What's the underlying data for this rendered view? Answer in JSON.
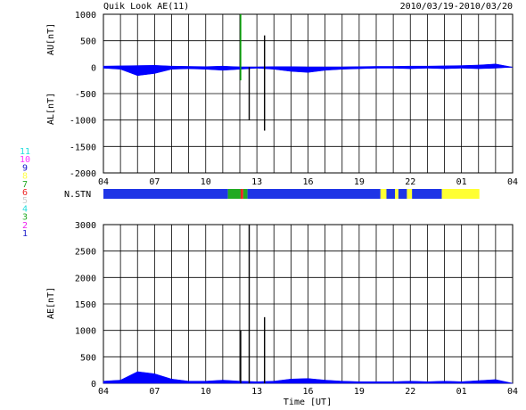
{
  "header": {
    "title": "Quik Look AE(11)",
    "date_range": "2010/03/19-2010/03/20"
  },
  "colors": {
    "background": "#ffffff",
    "grid": "#000000",
    "au_fill": "#0000ff",
    "au_high": "#00aa00",
    "al_fill": "#0000ff",
    "spike": "#000000",
    "yellow_series": "#ffff00",
    "stn_blue": "#1f35e6",
    "stn_yellow": "#ffff33"
  },
  "station_legend": [
    {
      "label": "11",
      "color": "#22dddd"
    },
    {
      "label": "10",
      "color": "#ff33ff"
    },
    {
      "label": "9",
      "color": "#1111cc"
    },
    {
      "label": "8",
      "color": "#ffff44"
    },
    {
      "label": "7",
      "color": "#22aa22"
    },
    {
      "label": "6",
      "color": "#ee2222"
    },
    {
      "label": "5",
      "color": "#cccccc"
    },
    {
      "label": "4",
      "color": "#22dddd"
    },
    {
      "label": "3",
      "color": "#22aa22"
    },
    {
      "label": "2",
      "color": "#ee22ee"
    },
    {
      "label": "1",
      "color": "#2222cc"
    }
  ],
  "chart_data": [
    {
      "id": "au_al",
      "type": "area",
      "ylabel_upper": "AU[nT]",
      "ylabel_lower": "AL[nT]",
      "ylim": [
        -2000,
        1000
      ],
      "yticks": [
        1000,
        500,
        0,
        -500,
        -1000,
        -1500,
        -2000
      ],
      "xticks": [
        "04",
        "07",
        "10",
        "13",
        "16",
        "19",
        "22",
        "01",
        "04"
      ],
      "x_hours": [
        0,
        1,
        2,
        3,
        4,
        5,
        6,
        7,
        8,
        9,
        10,
        11,
        12,
        13,
        14,
        15,
        16,
        17,
        18,
        19,
        20,
        21,
        22,
        23,
        24
      ],
      "au": [
        20,
        25,
        30,
        35,
        20,
        15,
        10,
        20,
        5,
        5,
        10,
        10,
        5,
        5,
        5,
        10,
        15,
        15,
        20,
        20,
        25,
        30,
        40,
        60,
        0
      ],
      "al": [
        -20,
        -40,
        -160,
        -120,
        -40,
        -30,
        -40,
        -60,
        -40,
        -20,
        -40,
        -80,
        -100,
        -60,
        -40,
        -30,
        -20,
        -20,
        -30,
        -20,
        -30,
        -20,
        -30,
        -20,
        0
      ],
      "spikes_hours": [
        8.05,
        8.55,
        9.45
      ],
      "spike_values": [
        [
          -250,
          1000
        ],
        [
          -1000,
          0
        ],
        [
          -1200,
          600
        ]
      ],
      "grid": true
    },
    {
      "id": "nstn",
      "type": "heatmap",
      "label": "N.STN",
      "segments": [
        {
          "from": 0,
          "to": 7.3,
          "color": "#1f35e6"
        },
        {
          "from": 7.3,
          "to": 8.05,
          "color": "#22aa22"
        },
        {
          "from": 8.05,
          "to": 8.2,
          "color": "#ee2222"
        },
        {
          "from": 8.2,
          "to": 8.45,
          "color": "#22aa22"
        },
        {
          "from": 8.45,
          "to": 16.25,
          "color": "#1f35e6"
        },
        {
          "from": 16.25,
          "to": 16.6,
          "color": "#ffff33"
        },
        {
          "from": 16.6,
          "to": 17.1,
          "color": "#1f35e6"
        },
        {
          "from": 17.1,
          "to": 17.3,
          "color": "#ffff33"
        },
        {
          "from": 17.3,
          "to": 17.8,
          "color": "#1f35e6"
        },
        {
          "from": 17.8,
          "to": 18.1,
          "color": "#ffff33"
        },
        {
          "from": 18.1,
          "to": 19.85,
          "color": "#1f35e6"
        },
        {
          "from": 19.85,
          "to": 22.05,
          "color": "#ffff33"
        }
      ]
    },
    {
      "id": "ae",
      "type": "area",
      "ylabel": "AE[nT]",
      "xlabel": "Time [UT]",
      "ylim": [
        0,
        3000
      ],
      "yticks": [
        3000,
        2500,
        2000,
        1500,
        1000,
        500,
        0
      ],
      "xticks": [
        "04",
        "07",
        "10",
        "13",
        "16",
        "19",
        "22",
        "01",
        "04"
      ],
      "x_hours": [
        0,
        1,
        2,
        3,
        4,
        5,
        6,
        7,
        8,
        9,
        10,
        11,
        12,
        13,
        14,
        15,
        16,
        17,
        18,
        19,
        20,
        21,
        22,
        23,
        24
      ],
      "values": [
        40,
        60,
        220,
        180,
        80,
        40,
        40,
        60,
        40,
        30,
        40,
        80,
        90,
        60,
        40,
        30,
        30,
        30,
        40,
        30,
        40,
        30,
        50,
        70,
        0
      ],
      "spikes_hours": [
        8.05,
        8.55,
        9.45
      ],
      "spike_values": [
        1000,
        3000,
        1250
      ],
      "grid": true
    }
  ]
}
